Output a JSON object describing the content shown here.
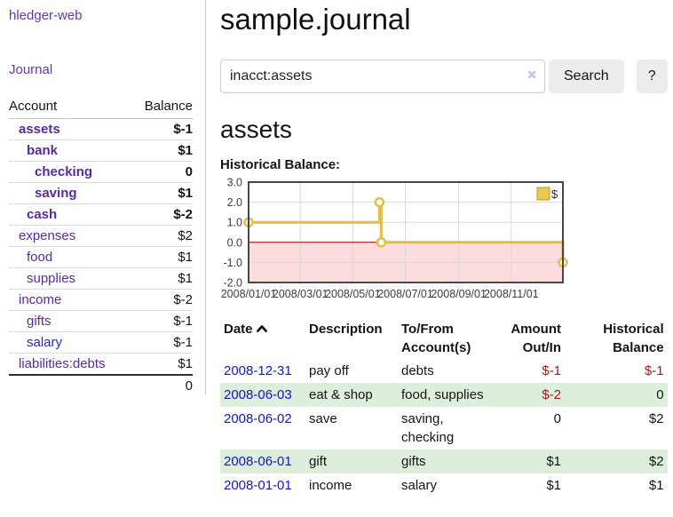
{
  "app": {
    "title": "hledger-web"
  },
  "sidebar": {
    "nav": {
      "journal_label": "Journal"
    },
    "table": {
      "account_header": "Account",
      "balance_header": "Balance",
      "accounts": [
        {
          "label": "assets",
          "name_class": "ind0 bold",
          "balance": "$-1",
          "balance_class": "bold neg-strong"
        },
        {
          "label": "bank",
          "name_class": "ind1 bold",
          "balance": "$1",
          "balance_class": "bold"
        },
        {
          "label": "checking",
          "name_class": "ind2 bold",
          "balance": "0",
          "balance_class": "bold"
        },
        {
          "label": "saving",
          "name_class": "ind2 bold",
          "balance": "$1",
          "balance_class": "bold"
        },
        {
          "label": "cash",
          "name_class": "ind1 bold",
          "balance": "$-2",
          "balance_class": "bold neg-strong"
        },
        {
          "label": "expenses",
          "name_class": "ind0",
          "balance": "$2",
          "balance_class": ""
        },
        {
          "label": "food",
          "name_class": "ind1",
          "balance": "$1",
          "balance_class": ""
        },
        {
          "label": "supplies",
          "name_class": "ind1",
          "balance": "$1",
          "balance_class": ""
        },
        {
          "label": "income",
          "name_class": "ind0",
          "balance": "$-2",
          "balance_class": "neg-soft"
        },
        {
          "label": "gifts",
          "name_class": "ind1",
          "balance": "$-1",
          "balance_class": "neg-soft"
        },
        {
          "label": "salary",
          "name_class": "ind1 blue",
          "balance": "$-1",
          "balance_class": "neg-soft"
        },
        {
          "label": "liabilities:debts",
          "name_class": "ind0",
          "balance": "$1",
          "balance_class": ""
        }
      ],
      "total": "0"
    }
  },
  "header": {
    "title": "sample.journal"
  },
  "search": {
    "value": "inacct:assets",
    "clear_icon": "✖",
    "button_label": "Search",
    "help_label": "?"
  },
  "account_page": {
    "title": "assets",
    "chart_label": "Historical Balance:"
  },
  "chart_data": {
    "type": "line",
    "title": "Historical Balance",
    "step": true,
    "series": [
      {
        "name": "$",
        "points": [
          {
            "date": "2008-01-01",
            "day": 0,
            "value": 1
          },
          {
            "date": "2008-06-01",
            "day": 152,
            "value": 2
          },
          {
            "date": "2008-06-03",
            "day": 154,
            "value": 0
          },
          {
            "date": "2008-12-31",
            "day": 365,
            "value": -1
          }
        ]
      }
    ],
    "ylim": [
      -2,
      3
    ],
    "yticks": [
      3.0,
      2.0,
      1.0,
      0.0,
      -1.0,
      -2.0
    ],
    "xticks": [
      {
        "label": "2008/01/01",
        "day": 0
      },
      {
        "label": "2008/03/01",
        "day": 60
      },
      {
        "label": "2008/05/01",
        "day": 121
      },
      {
        "label": "2008/07/01",
        "day": 182
      },
      {
        "label": "2008/09/01",
        "day": 244
      },
      {
        "label": "2008/11/01",
        "day": 305
      }
    ],
    "xrange_days": [
      0,
      365
    ],
    "grid": true,
    "legend": {
      "position": "top-right",
      "label": "$"
    },
    "colors": {
      "line": "#e2bd49",
      "marker_fill": "#ffffff",
      "legend_fill": "#eac94f",
      "legend_border": "#bf9b2c",
      "negative_region": "#fcdcdc",
      "zero_line": "#9b0000",
      "gridline": "#d9d9d9",
      "border": "#474747",
      "tick_text": "#3d3d3d"
    }
  },
  "register": {
    "columns": {
      "date": "Date",
      "description": "Description",
      "accounts": "To/From Account(s)",
      "amount": "Amount Out/In",
      "balance": "Historical Balance"
    },
    "rows": [
      {
        "date": "2008-12-31",
        "description": "pay off",
        "accounts": "debts",
        "amount": "$-1",
        "amount_class": "neg",
        "balance": "$-1",
        "balance_class": "neg"
      },
      {
        "date": "2008-06-03",
        "description": "eat & shop",
        "accounts": "food, supplies",
        "amount": "$-2",
        "amount_class": "neg",
        "balance": "0",
        "balance_class": ""
      },
      {
        "date": "2008-06-02",
        "description": "save",
        "accounts": "saving, checking",
        "amount": "0",
        "amount_class": "",
        "balance": "$2",
        "balance_class": ""
      },
      {
        "date": "2008-06-01",
        "description": "gift",
        "accounts": "gifts",
        "amount": "$1",
        "amount_class": "",
        "balance": "$2",
        "balance_class": ""
      },
      {
        "date": "2008-01-01",
        "description": "income",
        "accounts": "salary",
        "amount": "$1",
        "amount_class": "",
        "balance": "$1",
        "balance_class": ""
      }
    ]
  },
  "colors": {
    "link_purple": "#5b2a9a",
    "link_blue": "#2323d6",
    "date_link_blue": "#1414cc",
    "negative_strong": "#8f1414",
    "negative_soft": "#c47e7e",
    "row_green": "#deeedd",
    "chart_gold": "#e2bd49"
  }
}
